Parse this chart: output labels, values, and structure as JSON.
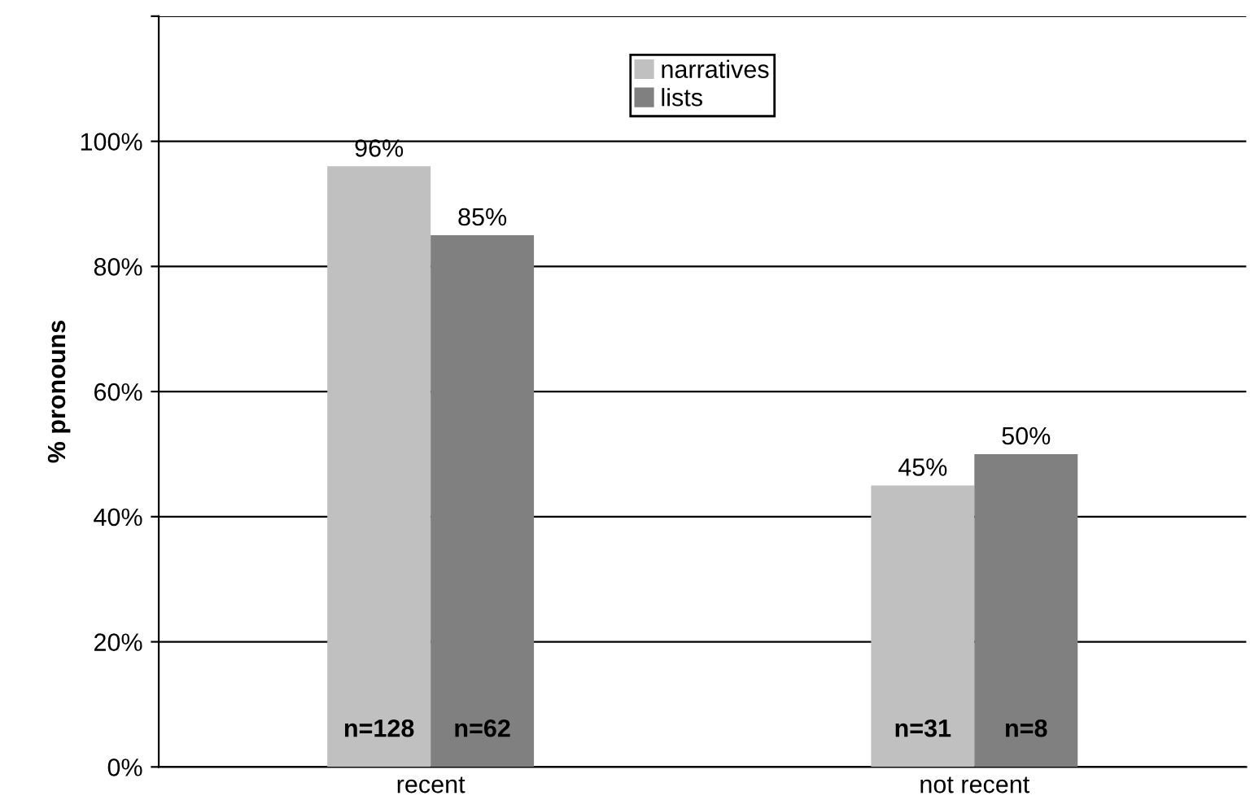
{
  "chart_data": {
    "type": "bar",
    "ylabel": "% pronouns",
    "categories": [
      "recent",
      "not recent"
    ],
    "series": [
      {
        "name": "narratives",
        "color": "#c0c0c0",
        "values": [
          96,
          45
        ],
        "value_labels": [
          "96%",
          "45%"
        ]
      },
      {
        "name": "lists",
        "color": "#808080",
        "values": [
          85,
          50
        ],
        "value_labels": [
          "85%",
          "50%"
        ]
      }
    ],
    "ylim": [
      0,
      120
    ],
    "yticks": [
      {
        "value": 0,
        "label": "0%"
      },
      {
        "value": 20,
        "label": "20%"
      },
      {
        "value": 40,
        "label": "40%"
      },
      {
        "value": 60,
        "label": "60%"
      },
      {
        "value": 80,
        "label": "80%"
      },
      {
        "value": 100,
        "label": "100%"
      },
      {
        "value": 120,
        "label": null
      }
    ],
    "grid": "y",
    "legend": "top",
    "annotations": [
      {
        "text": "n=128",
        "x": "recent",
        "y": 4
      },
      {
        "text": "n=62",
        "x": "recent",
        "y": 4
      },
      {
        "text": "n=31",
        "x": "not recent",
        "y": 4
      },
      {
        "text": "n=8",
        "x": "not recent",
        "y": 4
      }
    ]
  }
}
